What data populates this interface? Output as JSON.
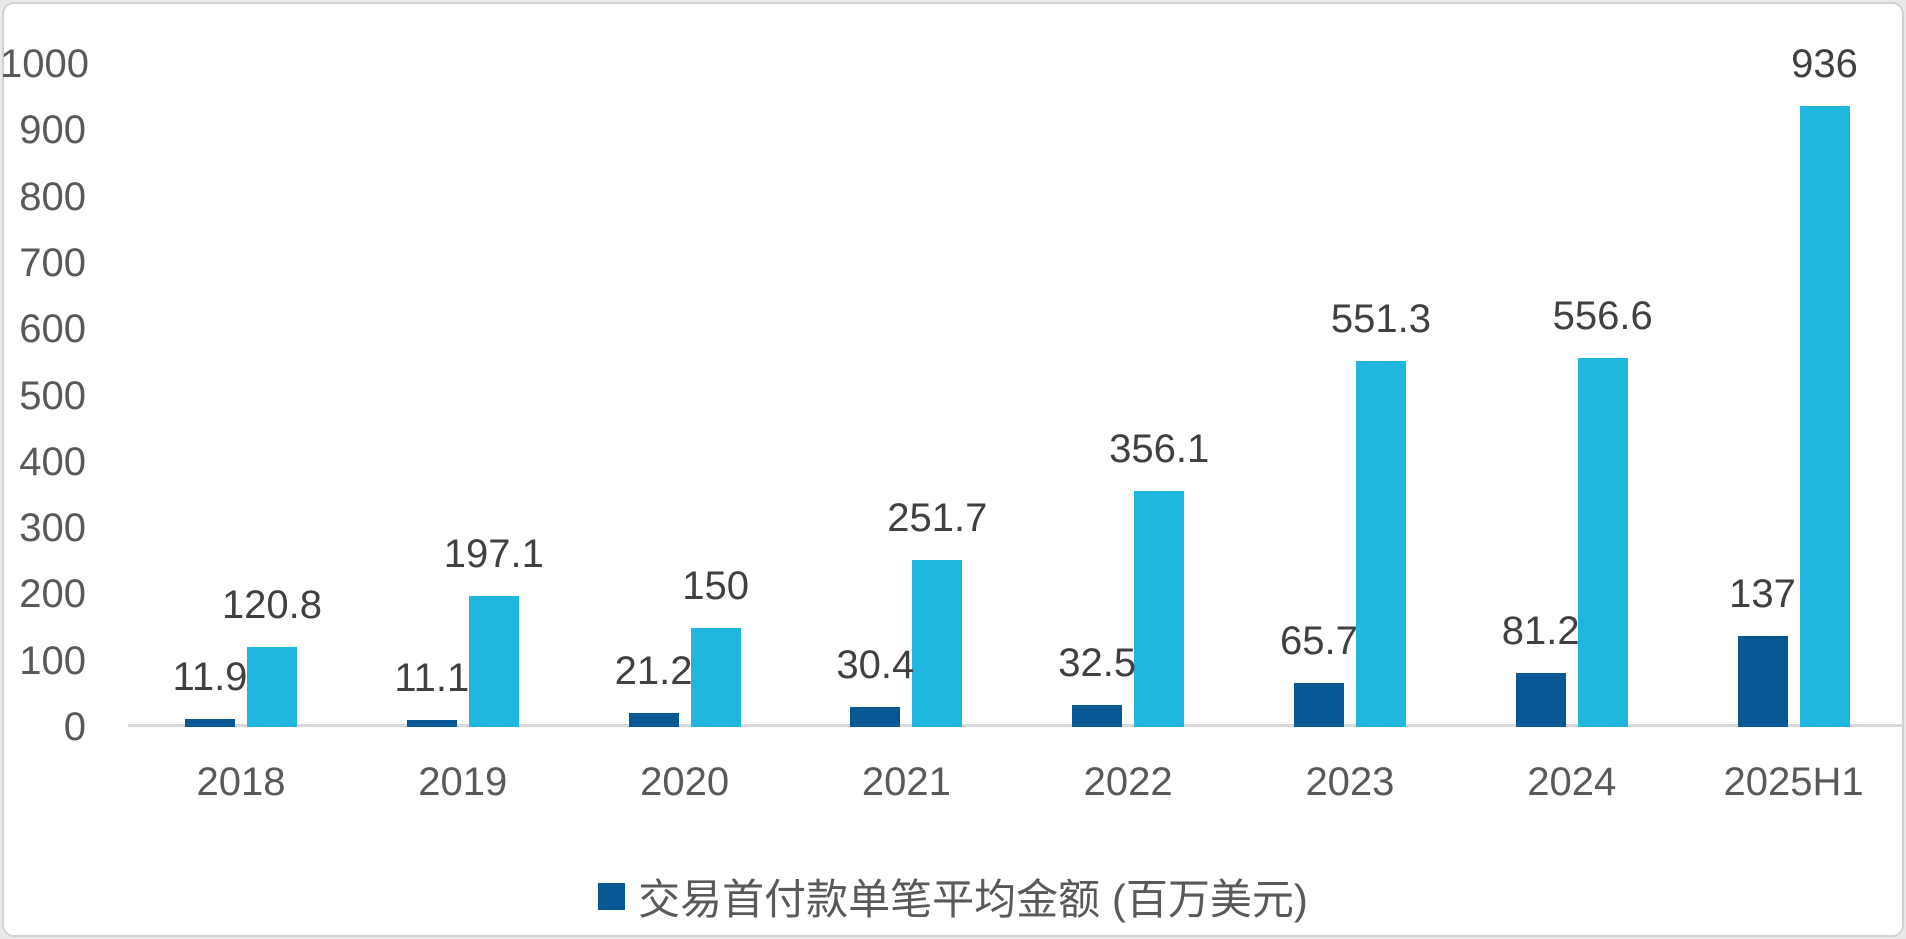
{
  "chart_data": {
    "type": "bar",
    "categories": [
      "2018",
      "2019",
      "2020",
      "2021",
      "2022",
      "2023",
      "2024",
      "2025H1"
    ],
    "series": [
      {
        "name": "交易首付款单笔平均金额 (百万美元)",
        "color": "#0A5796",
        "values": [
          11.9,
          11.1,
          21.2,
          30.4,
          32.5,
          65.7,
          81.2,
          137
        ],
        "labels": [
          "11.9",
          "11.1",
          "21.2",
          "30.4",
          "32.5",
          "65.7",
          "81.2",
          "137"
        ]
      },
      {
        "name": "",
        "color": "#21B6DF",
        "values": [
          120.8,
          197.1,
          150,
          251.7,
          356.1,
          551.3,
          556.6,
          936
        ],
        "labels": [
          "120.8",
          "197.1",
          "150",
          "251.7",
          "356.1",
          "551.3",
          "556.6",
          "936"
        ]
      }
    ],
    "title": "",
    "xlabel": "",
    "ylabel": "",
    "ylim": [
      0,
      1000
    ],
    "ytick_labels": [
      "0",
      "100",
      "200",
      "300",
      "400",
      "500",
      "600",
      "700",
      "800",
      "900",
      "1000"
    ],
    "grid": false,
    "legend_position": "bottom",
    "legend": [
      {
        "label": "交易首付款单笔平均金额 (百万美元)",
        "color": "#0A5796"
      }
    ]
  },
  "colors": {
    "dark_series": "#0A5796",
    "light_series": "#21B6DF",
    "data_label": "#404040",
    "axis_label": "#595959",
    "axis_line": "#D9D9D9"
  }
}
